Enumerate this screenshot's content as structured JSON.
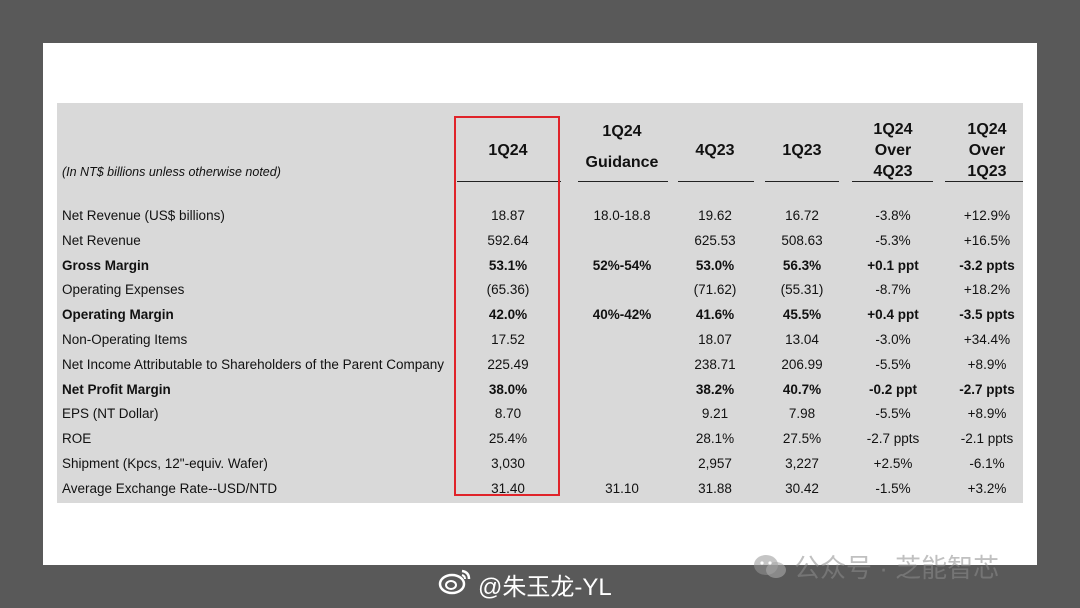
{
  "headers": {
    "note": "(In NT$ billions unless otherwise noted)",
    "col1": [
      "1Q24"
    ],
    "col2": [
      "1Q24",
      "Guidance"
    ],
    "col3": [
      "4Q23"
    ],
    "col4": [
      "1Q23"
    ],
    "col5": [
      "1Q24",
      "Over",
      "4Q23"
    ],
    "col6": [
      "1Q24",
      "Over",
      "1Q23"
    ]
  },
  "rows": [
    {
      "label": "Net Revenue (US$ billions)",
      "bold": false,
      "v": [
        "18.87",
        "18.0-18.8",
        "19.62",
        "16.72",
        "-3.8%",
        "+12.9%"
      ]
    },
    {
      "label": "Net Revenue",
      "bold": false,
      "v": [
        "592.64",
        "",
        "625.53",
        "508.63",
        "-5.3%",
        "+16.5%"
      ]
    },
    {
      "label": "Gross Margin",
      "bold": true,
      "v": [
        "53.1%",
        "52%-54%",
        "53.0%",
        "56.3%",
        "+0.1 ppt",
        "-3.2 ppts"
      ]
    },
    {
      "label": "Operating Expenses",
      "bold": false,
      "v": [
        "(65.36)",
        "",
        "(71.62)",
        "(55.31)",
        "-8.7%",
        "+18.2%"
      ]
    },
    {
      "label": "Operating Margin",
      "bold": true,
      "v": [
        "42.0%",
        "40%-42%",
        "41.6%",
        "45.5%",
        "+0.4 ppt",
        "-3.5 ppts"
      ]
    },
    {
      "label": "Non-Operating Items",
      "bold": false,
      "v": [
        "17.52",
        "",
        "18.07",
        "13.04",
        "-3.0%",
        "+34.4%"
      ]
    },
    {
      "label": "Net Income Attributable to Shareholders of the Parent Company",
      "bold": false,
      "v": [
        "225.49",
        "",
        "238.71",
        "206.99",
        "-5.5%",
        "+8.9%"
      ]
    },
    {
      "label": "Net Profit Margin",
      "bold": true,
      "v": [
        "38.0%",
        "",
        "38.2%",
        "40.7%",
        "-0.2 ppt",
        "-2.7 ppts"
      ]
    },
    {
      "label": "EPS (NT Dollar)",
      "bold": false,
      "v": [
        "8.70",
        "",
        "9.21",
        "7.98",
        "-5.5%",
        "+8.9%"
      ]
    },
    {
      "label": "ROE",
      "bold": false,
      "v": [
        "25.4%",
        "",
        "28.1%",
        "27.5%",
        "-2.7 ppts",
        "-2.1 ppts"
      ]
    },
    {
      "label": "Shipment (Kpcs, 12\"-equiv. Wafer)",
      "bold": false,
      "v": [
        "3,030",
        "",
        "2,957",
        "3,227",
        "+2.5%",
        "-6.1%"
      ]
    },
    {
      "label": "Average Exchange Rate--USD/NTD",
      "bold": false,
      "v": [
        "31.40",
        "31.10",
        "31.88",
        "30.42",
        "-1.5%",
        "+3.2%"
      ]
    }
  ],
  "watermark": {
    "text": "公众号 · 芝能智芯",
    "icon": "wechat-icon"
  },
  "credit": {
    "text": "@朱玉龙-YL",
    "icon": "weibo-icon"
  },
  "colors": {
    "highlight": "#e0242a",
    "panel": "#d9d9d9",
    "background": "#595959"
  }
}
